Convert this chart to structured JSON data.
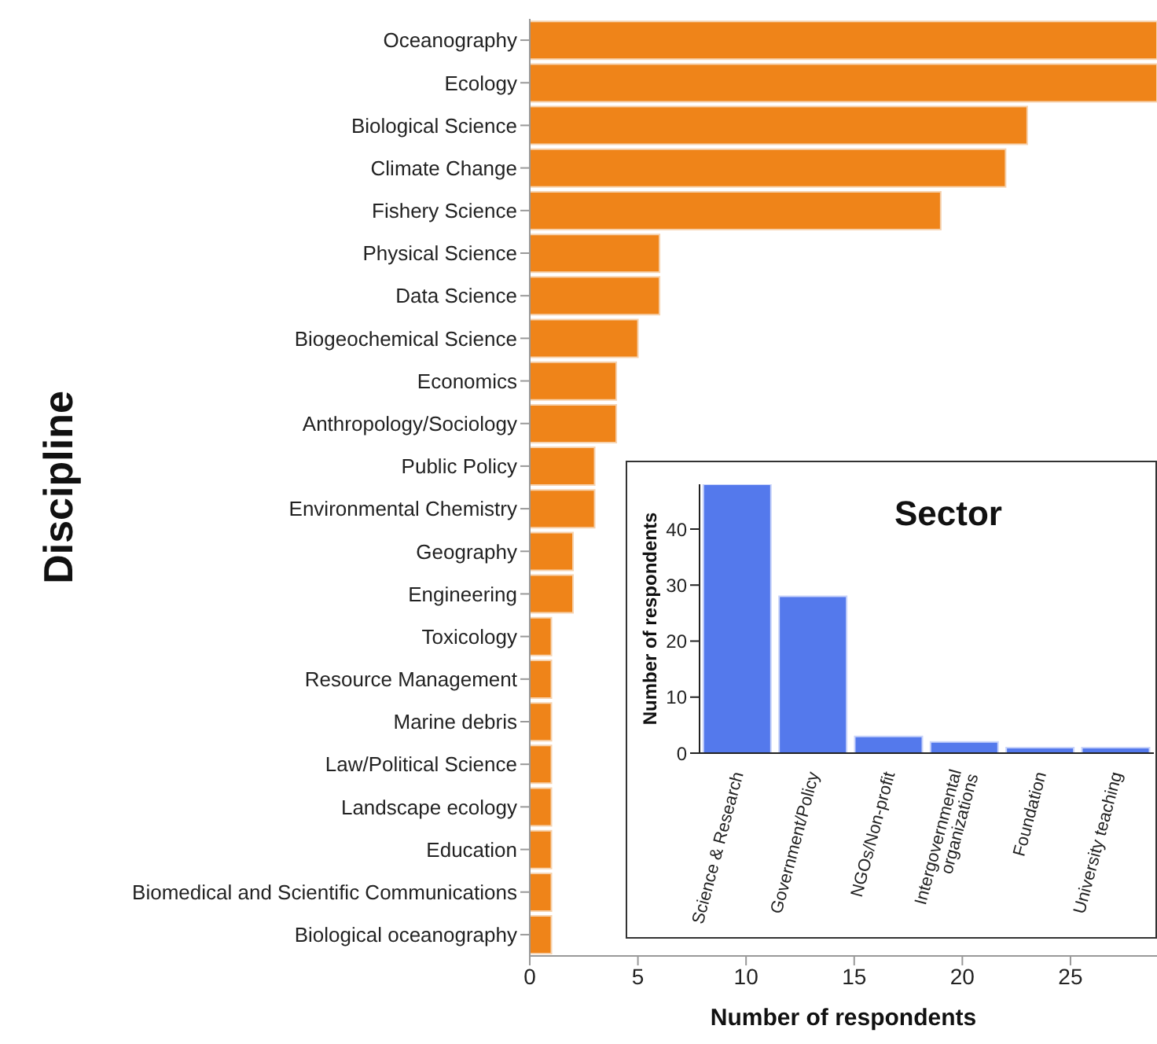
{
  "chart_data": [
    {
      "type": "bar",
      "orientation": "horizontal",
      "xlabel": "Number of respondents",
      "ylabel": "Discipline",
      "color": "#ef8419",
      "categories": [
        "Oceanography",
        "Ecology",
        "Biological Science",
        "Climate Change",
        "Fishery Science",
        "Physical Science",
        "Data Science",
        "Biogeochemical Science",
        "Economics",
        "Anthropology/Sociology",
        "Public Policy",
        "Environmental Chemistry",
        "Geography",
        "Engineering",
        "Toxicology",
        "Resource Management",
        "Marine debris",
        "Law/Political Science",
        "Landscape ecology",
        "Education",
        "Biomedical and Scientific Communications",
        "Biological oceanography"
      ],
      "values": [
        29,
        29,
        23,
        22,
        19,
        6,
        6,
        5,
        4,
        4,
        3,
        3,
        2,
        2,
        1,
        1,
        1,
        1,
        1,
        1,
        1,
        1
      ],
      "xlim": [
        0,
        29
      ],
      "xticks": [
        0,
        5,
        10,
        15,
        20,
        25
      ]
    },
    {
      "type": "bar",
      "title": "Sector",
      "ylabel": "Number of respondents",
      "color": "#5479ec",
      "categories": [
        "Science & Research",
        "Government/Policy",
        "NGOs/Non-profit",
        "Intergovernmental organizations",
        "Foundation",
        "University teaching"
      ],
      "values": [
        48,
        28,
        3,
        2,
        1,
        1
      ],
      "ylim": [
        0,
        48
      ],
      "yticks": [
        0,
        10,
        20,
        30,
        40
      ]
    }
  ]
}
